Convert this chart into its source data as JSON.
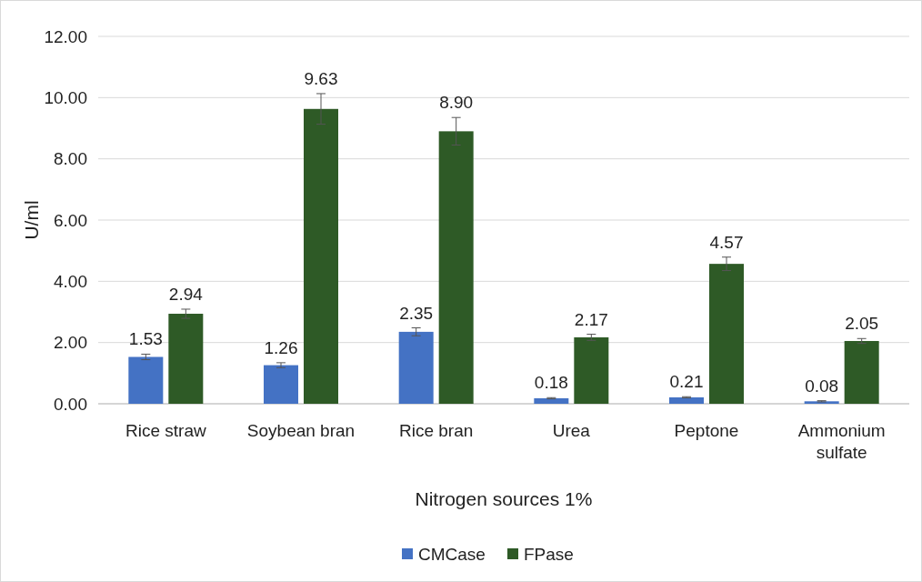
{
  "chart_data": {
    "type": "bar",
    "xlabel": "Nitrogen sources 1%",
    "ylabel": "U/ml",
    "categories": [
      "Rice straw",
      "Soybean bran",
      "Rice bran",
      "Urea",
      "Peptone",
      "Ammonium sulfate"
    ],
    "series": [
      {
        "name": "CMCase",
        "color": "#4472c4",
        "values": [
          1.53,
          1.26,
          2.35,
          0.18,
          0.21,
          0.08
        ],
        "value_labels": [
          "1.53",
          "1.26",
          "2.35",
          "0.18",
          "0.21",
          "0.08"
        ],
        "errors": [
          0.09,
          0.08,
          0.13,
          0.02,
          0.02,
          0.02
        ]
      },
      {
        "name": "FPase",
        "color": "#2e5a26",
        "values": [
          2.94,
          9.63,
          8.9,
          2.17,
          4.57,
          2.05
        ],
        "value_labels": [
          "2.94",
          "9.63",
          "8.90",
          "2.17",
          "4.57",
          "2.05"
        ],
        "errors": [
          0.15,
          0.5,
          0.45,
          0.1,
          0.22,
          0.08
        ]
      }
    ],
    "ylim": [
      0,
      12
    ],
    "yticks": [
      {
        "value": 0,
        "label": "0.00"
      },
      {
        "value": 2,
        "label": "2.00"
      },
      {
        "value": 4,
        "label": "4.00"
      },
      {
        "value": 6,
        "label": "6.00"
      },
      {
        "value": 8,
        "label": "8.00"
      },
      {
        "value": 10,
        "label": "10.00"
      },
      {
        "value": 12,
        "label": "12.00"
      }
    ],
    "grid": "y",
    "legend": "bottom"
  }
}
